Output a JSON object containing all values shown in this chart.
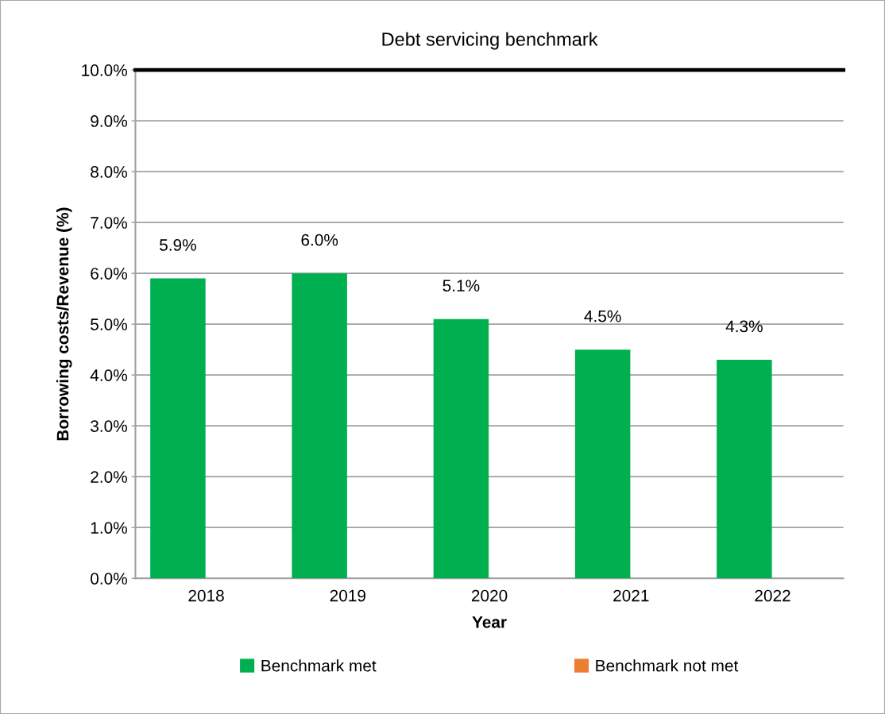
{
  "chart_data": {
    "type": "bar",
    "title": "Debt servicing benchmark",
    "xlabel": "Year",
    "ylabel": "Borrowing costs/Revenue (%)",
    "categories": [
      "2018",
      "2019",
      "2020",
      "2021",
      "2022"
    ],
    "series": [
      {
        "name": "Benchmark met",
        "color": "#00b050",
        "values": [
          5.9,
          6.0,
          5.1,
          4.5,
          4.3
        ],
        "value_labels": [
          "5.9%",
          "6.0%",
          "5.1%",
          "4.5%",
          "4.3%"
        ]
      },
      {
        "name": "Benchmark not met",
        "color": "#ed7d31",
        "values": [
          null,
          null,
          null,
          null,
          null
        ]
      }
    ],
    "ylim": [
      0,
      10
    ],
    "yticks": [
      {
        "value": 0,
        "label": "0.0%"
      },
      {
        "value": 1,
        "label": "1.0%"
      },
      {
        "value": 2,
        "label": "2.0%"
      },
      {
        "value": 3,
        "label": "3.0%"
      },
      {
        "value": 4,
        "label": "4.0%"
      },
      {
        "value": 5,
        "label": "5.0%"
      },
      {
        "value": 6,
        "label": "6.0%"
      },
      {
        "value": 7,
        "label": "7.0%"
      },
      {
        "value": 8,
        "label": "8.0%"
      },
      {
        "value": 9,
        "label": "9.0%"
      },
      {
        "value": 10,
        "label": "10.0%"
      }
    ],
    "ref_lines": [
      {
        "axis": "y",
        "value": 10,
        "color": "#000000",
        "line_style": "solid"
      }
    ],
    "grid": "y",
    "legend": "bottom"
  }
}
